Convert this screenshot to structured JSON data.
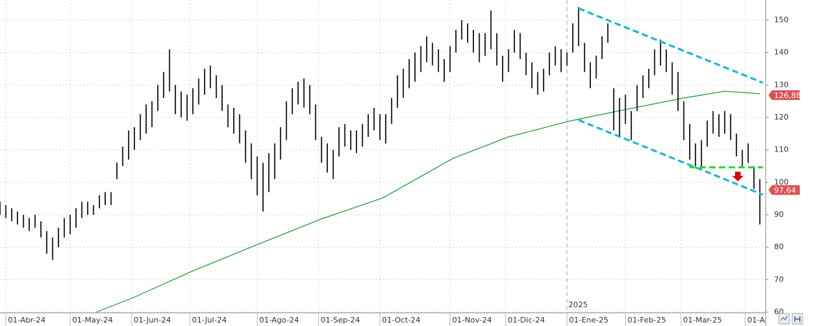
{
  "chart_data": {
    "type": "ohlc",
    "color": "#000000",
    "x": [
      0,
      2,
      4,
      6,
      8,
      10,
      12,
      14,
      16,
      18,
      20,
      22,
      24,
      26,
      28,
      30,
      32,
      34,
      36,
      38,
      40,
      42,
      44,
      46,
      48,
      50,
      52,
      54,
      56,
      58,
      60,
      62,
      64,
      66,
      68,
      70,
      72,
      74,
      76,
      78,
      80,
      82,
      84,
      86,
      88,
      90,
      92,
      94,
      96,
      98,
      100,
      102,
      104,
      106,
      108,
      110,
      112,
      114,
      116,
      118,
      120,
      122,
      124,
      126,
      128,
      130,
      132,
      134,
      136,
      138,
      140,
      142,
      144,
      146,
      148,
      150,
      152,
      154,
      156,
      158,
      160,
      162,
      164,
      166,
      168,
      170,
      172,
      174,
      176,
      178,
      180,
      182,
      184,
      186,
      188,
      190,
      192,
      194,
      196,
      198,
      200,
      202,
      204,
      206,
      208,
      210,
      212,
      214,
      216,
      218,
      220,
      222,
      224,
      226,
      228,
      230,
      232,
      234,
      236,
      238,
      240,
      242,
      244,
      246,
      248,
      250,
      252,
      254,
      256,
      258,
      260
    ],
    "low": [
      90,
      89,
      88,
      87,
      86,
      85,
      86,
      83,
      78,
      76,
      80,
      83,
      84,
      86,
      89,
      90,
      90,
      92,
      93,
      93,
      101,
      105,
      107,
      110,
      113,
      115,
      117,
      122,
      126,
      128,
      121,
      120,
      119,
      121,
      124,
      127,
      129,
      126,
      122,
      117,
      115,
      112,
      106,
      101,
      96,
      91,
      97,
      101,
      107,
      113,
      121,
      124,
      123,
      121,
      113,
      106,
      103,
      101,
      108,
      111,
      110,
      109,
      111,
      114,
      116,
      113,
      112,
      118,
      123,
      126,
      129,
      131,
      134,
      137,
      136,
      134,
      131,
      134,
      140,
      144,
      143,
      140,
      137,
      139,
      141,
      136,
      131,
      134,
      140,
      138,
      133,
      129,
      127,
      128,
      133,
      136,
      134,
      136,
      140,
      142,
      134,
      129,
      132,
      138,
      143,
      116,
      114,
      118,
      113,
      122,
      126,
      129,
      133,
      136,
      134,
      127,
      122,
      113,
      107,
      105,
      104,
      111,
      115,
      114,
      115,
      113,
      108,
      105,
      106,
      98,
      87
    ],
    "high": [
      94,
      93,
      92,
      91,
      90,
      89,
      90,
      88,
      85,
      83,
      86,
      89,
      90,
      92,
      94,
      94,
      93,
      96,
      97,
      97,
      106,
      111,
      116,
      117,
      121,
      124,
      125,
      130,
      134,
      141,
      130,
      128,
      127,
      129,
      132,
      135,
      136,
      133,
      130,
      124,
      123,
      121,
      116,
      112,
      108,
      106,
      109,
      112,
      117,
      125,
      129,
      131,
      132,
      130,
      124,
      114,
      112,
      110,
      117,
      118,
      116,
      116,
      118,
      121,
      123,
      121,
      121,
      126,
      133,
      135,
      138,
      140,
      142,
      145,
      143,
      141,
      138,
      142,
      147,
      150,
      149,
      147,
      146,
      146,
      153,
      146,
      139,
      141,
      147,
      146,
      140,
      137,
      134,
      135,
      140,
      142,
      141,
      140,
      149,
      154,
      143,
      137,
      139,
      145,
      149,
      129,
      126,
      127,
      122,
      130,
      133,
      135,
      141,
      144,
      141,
      137,
      134,
      125,
      118,
      112,
      113,
      119,
      122,
      121,
      122,
      121,
      115,
      110,
      112,
      105,
      101
    ],
    "ma": {
      "color": "#1a9a3a",
      "x": [
        33,
        46,
        66,
        88,
        110,
        131,
        155,
        174,
        195,
        215,
        234,
        248,
        260
      ],
      "values": [
        60,
        64.6,
        72.7,
        80.8,
        88.7,
        95.2,
        107.4,
        114,
        118.9,
        122.6,
        126,
        128.1,
        127.3
      ]
    },
    "trendlines": [
      {
        "color": "#1fb3d6",
        "x": [
          198,
          261
        ],
        "values": [
          153.6,
          130.7
        ]
      },
      {
        "color": "#1fb3d6",
        "x": [
          198,
          261
        ],
        "values": [
          119.2,
          96.2
        ]
      },
      {
        "color": "#22dd22",
        "x": [
          236,
          261
        ],
        "values": [
          104.6,
          104.6
        ]
      }
    ],
    "price_labels": [
      {
        "value": 126.88,
        "label": "126,88",
        "color": "#e05050"
      },
      {
        "value": 97.64,
        "label": "97,64",
        "color": "#e05050"
      }
    ],
    "year_marker": {
      "value": 194,
      "label": "2025"
    },
    "xlim": [
      0,
      262
    ],
    "ylim": [
      60,
      156.2
    ],
    "xticks": [
      {
        "value": 2,
        "label": "01-Abr-24"
      },
      {
        "value": 24,
        "label": "01-May-24"
      },
      {
        "value": 45,
        "label": "01-Jun-24"
      },
      {
        "value": 65,
        "label": "01-Jul-24"
      },
      {
        "value": 88,
        "label": "01-Ago-24"
      },
      {
        "value": 109,
        "label": "01-Sep-24"
      },
      {
        "value": 130,
        "label": "01-Oct-24"
      },
      {
        "value": 154,
        "label": "01-Nov-24"
      },
      {
        "value": 173,
        "label": "01-Dic-24"
      },
      {
        "value": 194,
        "label": "01-Ene-25"
      },
      {
        "value": 214,
        "label": "01-Feb-25"
      },
      {
        "value": 233,
        "label": "01-Mar-25"
      },
      {
        "value": 255,
        "label": "01-A"
      }
    ],
    "yticks": [
      60,
      70,
      80,
      90,
      100,
      110,
      120,
      130,
      140,
      150
    ],
    "grid": true
  }
}
